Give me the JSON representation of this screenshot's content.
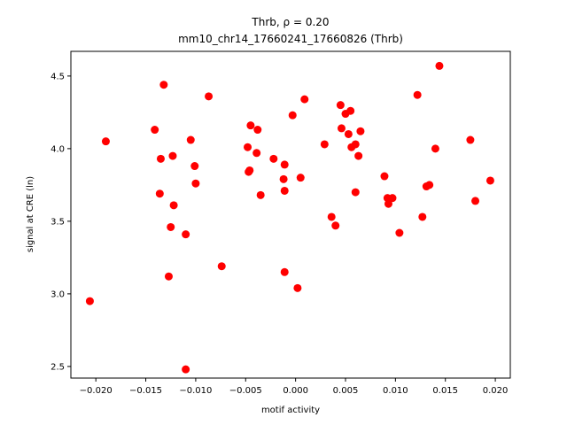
{
  "chart_data": {
    "type": "scatter",
    "title_line1": "Thrb, ρ = 0.20",
    "title_line2": "mm10_chr14_17660241_17660826 (Thrb)",
    "xlabel": "motif activity",
    "ylabel": "signal at CRE (ln)",
    "xlim": [
      -0.0225,
      0.0215
    ],
    "ylim": [
      2.42,
      4.67
    ],
    "xticks": [
      -0.02,
      -0.015,
      -0.01,
      -0.005,
      0.0,
      0.005,
      0.01,
      0.015,
      0.02
    ],
    "xtick_labels": [
      "−0.020",
      "−0.015",
      "−0.010",
      "−0.005",
      "0.000",
      "0.005",
      "0.010",
      "0.015",
      "0.020"
    ],
    "yticks": [
      2.5,
      3.0,
      3.5,
      4.0,
      4.5
    ],
    "ytick_labels": [
      "2.5",
      "3.0",
      "3.5",
      "4.0",
      "4.5"
    ],
    "grid": false,
    "point_color": "#ff0000",
    "points": [
      {
        "x": -0.0206,
        "y": 2.95
      },
      {
        "x": -0.019,
        "y": 4.05
      },
      {
        "x": -0.0141,
        "y": 4.13
      },
      {
        "x": -0.0136,
        "y": 3.69
      },
      {
        "x": -0.0135,
        "y": 3.93
      },
      {
        "x": -0.0132,
        "y": 4.44
      },
      {
        "x": -0.0127,
        "y": 3.12
      },
      {
        "x": -0.0125,
        "y": 3.46
      },
      {
        "x": -0.0123,
        "y": 3.95
      },
      {
        "x": -0.0122,
        "y": 3.61
      },
      {
        "x": -0.011,
        "y": 3.41
      },
      {
        "x": -0.011,
        "y": 2.48
      },
      {
        "x": -0.0105,
        "y": 4.06
      },
      {
        "x": -0.0101,
        "y": 3.88
      },
      {
        "x": -0.01,
        "y": 3.76
      },
      {
        "x": -0.0087,
        "y": 4.36
      },
      {
        "x": -0.0074,
        "y": 3.19
      },
      {
        "x": -0.0048,
        "y": 4.01
      },
      {
        "x": -0.0047,
        "y": 3.84
      },
      {
        "x": -0.0046,
        "y": 3.85
      },
      {
        "x": -0.0045,
        "y": 4.16
      },
      {
        "x": -0.0039,
        "y": 3.97
      },
      {
        "x": -0.0038,
        "y": 4.13
      },
      {
        "x": -0.0035,
        "y": 3.68
      },
      {
        "x": -0.0022,
        "y": 3.93
      },
      {
        "x": -0.0012,
        "y": 3.79
      },
      {
        "x": -0.0011,
        "y": 3.15
      },
      {
        "x": -0.0011,
        "y": 3.89
      },
      {
        "x": -0.0011,
        "y": 3.71
      },
      {
        "x": -0.0003,
        "y": 4.23
      },
      {
        "x": 0.0002,
        "y": 3.04
      },
      {
        "x": 0.0005,
        "y": 3.8
      },
      {
        "x": 0.0009,
        "y": 4.34
      },
      {
        "x": 0.0029,
        "y": 4.03
      },
      {
        "x": 0.0036,
        "y": 3.53
      },
      {
        "x": 0.004,
        "y": 3.47
      },
      {
        "x": 0.0045,
        "y": 4.3
      },
      {
        "x": 0.0046,
        "y": 4.14
      },
      {
        "x": 0.005,
        "y": 4.24
      },
      {
        "x": 0.0053,
        "y": 4.1
      },
      {
        "x": 0.0055,
        "y": 4.26
      },
      {
        "x": 0.0056,
        "y": 4.01
      },
      {
        "x": 0.006,
        "y": 3.7
      },
      {
        "x": 0.006,
        "y": 4.03
      },
      {
        "x": 0.0063,
        "y": 3.95
      },
      {
        "x": 0.0065,
        "y": 4.12
      },
      {
        "x": 0.0089,
        "y": 3.81
      },
      {
        "x": 0.0092,
        "y": 3.66
      },
      {
        "x": 0.0093,
        "y": 3.62
      },
      {
        "x": 0.0097,
        "y": 3.66
      },
      {
        "x": 0.0104,
        "y": 3.42
      },
      {
        "x": 0.0122,
        "y": 4.37
      },
      {
        "x": 0.0127,
        "y": 3.53
      },
      {
        "x": 0.0131,
        "y": 3.74
      },
      {
        "x": 0.0134,
        "y": 3.75
      },
      {
        "x": 0.014,
        "y": 4.0
      },
      {
        "x": 0.0144,
        "y": 4.57
      },
      {
        "x": 0.0175,
        "y": 4.06
      },
      {
        "x": 0.018,
        "y": 3.64
      },
      {
        "x": 0.0195,
        "y": 3.78
      }
    ]
  }
}
